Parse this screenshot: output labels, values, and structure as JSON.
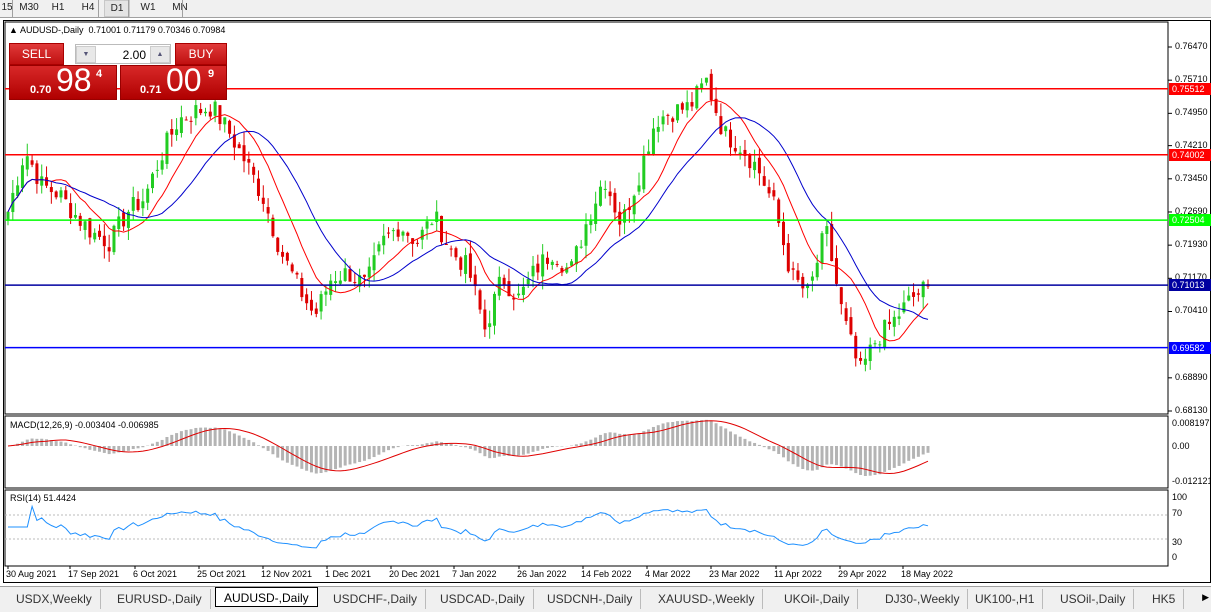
{
  "timeframes": [
    {
      "label": "15"
    },
    {
      "label": "M30"
    },
    {
      "label": "H1"
    },
    {
      "label": "H4"
    },
    {
      "label": "D1",
      "active": true
    },
    {
      "label": "W1"
    },
    {
      "label": "MN"
    }
  ],
  "chart": {
    "symbol": "AUDUSD-,Daily",
    "ohlc": "0.71001 0.71179 0.70346 0.70984",
    "trade": {
      "sell_label": "SELL",
      "buy_label": "BUY",
      "lot": "2.00",
      "sell_prefix": "0.70",
      "sell_big": "98",
      "sell_pip": "4",
      "buy_prefix": "0.71",
      "buy_big": "00",
      "buy_pip": "9"
    },
    "price_axis": [
      "0.76470",
      "0.75710",
      "0.74950",
      "0.74210",
      "0.73450",
      "0.72690",
      "0.71930",
      "0.71170",
      "0.70410",
      "0.68890",
      "0.68130"
    ],
    "price_range": [
      0.6813,
      0.7647
    ],
    "hlines": [
      {
        "price": "0.75512",
        "color": "#ff0000"
      },
      {
        "price": "0.74002",
        "color": "#ff0000"
      },
      {
        "price": "0.72504",
        "color": "#00ff00"
      },
      {
        "price": "0.71013",
        "color": "#0000a0"
      },
      {
        "price": "0.69582",
        "color": "#0000ff"
      }
    ],
    "bull_color": "#22cc22",
    "bear_color": "#dd0000",
    "ma_fast_color": "#ff0000",
    "ma_slow_color": "#0000cc",
    "closes_keypoints": [
      0.727,
      0.741,
      0.733,
      0.731,
      0.726,
      0.722,
      0.72,
      0.727,
      0.73,
      0.74,
      0.748,
      0.75,
      0.751,
      0.745,
      0.738,
      0.73,
      0.718,
      0.71,
      0.703,
      0.712,
      0.713,
      0.71,
      0.72,
      0.724,
      0.72,
      0.726,
      0.718,
      0.714,
      0.7,
      0.712,
      0.707,
      0.714,
      0.718,
      0.713,
      0.725,
      0.735,
      0.724,
      0.735,
      0.748,
      0.75,
      0.751,
      0.757,
      0.745,
      0.742,
      0.737,
      0.728,
      0.712,
      0.708,
      0.723,
      0.703,
      0.69,
      0.698,
      0.702,
      0.707,
      0.7098
    ],
    "dates": [
      "30 Aug 2021",
      "17 Sep 2021",
      "6 Oct 2021",
      "25 Oct 2021",
      "12 Nov 2021",
      "1 Dec 2021",
      "20 Dec 2021",
      "7 Jan 2022",
      "26 Jan 2022",
      "14 Feb 2022",
      "4 Mar 2022",
      "23 Mar 2022",
      "11 Apr 2022",
      "29 Apr 2022",
      "18 May 2022"
    ]
  },
  "macd": {
    "label": "MACD(12,26,9) -0.003404 -0.006985",
    "axis": [
      "0.008197",
      "0.00",
      "-0.012121"
    ]
  },
  "rsi": {
    "label": "RSI(14) 51.4424",
    "axis": [
      "100",
      "70",
      "30",
      "0"
    ],
    "line_color": "#1e90ff"
  },
  "tabs": [
    {
      "label": "USDX,Weekly"
    },
    {
      "label": "EURUSD-,Daily"
    },
    {
      "label": "AUDUSD-,Daily",
      "active": true
    },
    {
      "label": "USDCHF-,Daily"
    },
    {
      "label": "USDCAD-,Daily"
    },
    {
      "label": "USDCNH-,Daily"
    },
    {
      "label": "XAUUSD-,Weekly"
    },
    {
      "label": "UKOil-,Daily"
    },
    {
      "label": "DJ30-,Weekly"
    },
    {
      "label": "UK100-,H1"
    },
    {
      "label": "USOil-,Daily"
    },
    {
      "label": "HK5"
    }
  ]
}
